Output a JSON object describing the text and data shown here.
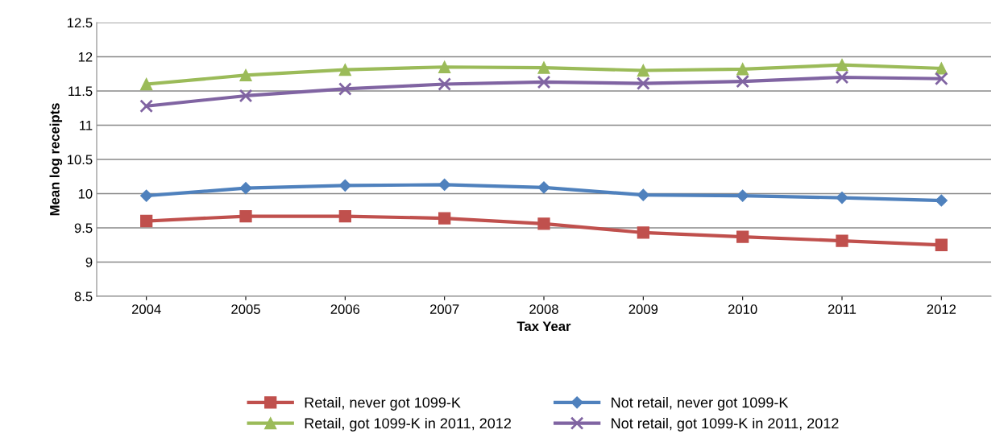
{
  "chart_data": {
    "type": "line",
    "xlabel": "Tax Year",
    "ylabel": "Mean log receipts",
    "categories": [
      "2004",
      "2005",
      "2006",
      "2007",
      "2008",
      "2009",
      "2010",
      "2011",
      "2012"
    ],
    "ylim": [
      8.5,
      12.5
    ],
    "yticks": [
      8.5,
      9,
      9.5,
      10,
      10.5,
      11,
      11.5,
      12,
      12.5
    ],
    "grid": "y",
    "legend": "bottom",
    "series": [
      {
        "name": "Retail, never got 1099-K",
        "color": "#c0504d",
        "marker": "square",
        "values": [
          9.6,
          9.67,
          9.67,
          9.64,
          9.56,
          9.43,
          9.37,
          9.31,
          9.25
        ]
      },
      {
        "name": "Not retail, never got 1099-K",
        "color": "#4f81bd",
        "marker": "diamond",
        "values": [
          9.97,
          10.08,
          10.12,
          10.13,
          10.09,
          9.98,
          9.97,
          9.94,
          9.9
        ]
      },
      {
        "name": "Retail, got 1099-K in 2011, 2012",
        "color": "#9bbb59",
        "marker": "triangle",
        "values": [
          11.6,
          11.73,
          11.81,
          11.85,
          11.84,
          11.8,
          11.82,
          11.88,
          11.83
        ]
      },
      {
        "name": "Not retail, got 1099-K in 2011, 2012",
        "color": "#8064a2",
        "marker": "cross",
        "values": [
          11.28,
          11.43,
          11.53,
          11.6,
          11.63,
          11.61,
          11.64,
          11.7,
          11.68
        ]
      }
    ]
  }
}
